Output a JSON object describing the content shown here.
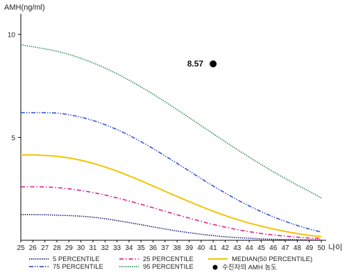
{
  "chart_data": {
    "type": "line",
    "ylabel": "AMH(ng/ml)",
    "xlabel": "나이",
    "x": [
      25,
      26,
      27,
      28,
      29,
      30,
      31,
      32,
      33,
      34,
      35,
      36,
      37,
      38,
      39,
      40,
      41,
      42,
      43,
      44,
      45,
      46,
      47,
      48,
      49,
      50
    ],
    "xlim": [
      25,
      50
    ],
    "ylim": [
      0,
      11
    ],
    "yticks": [
      5,
      10
    ],
    "grid": false,
    "legend_position": "bottom",
    "series": [
      {
        "name": "5 PERCENTILE",
        "color": "#1a1a6e",
        "style": "dotted",
        "values": [
          1.25,
          1.25,
          1.24,
          1.22,
          1.2,
          1.17,
          1.12,
          1.05,
          0.96,
          0.86,
          0.76,
          0.65,
          0.55,
          0.45,
          0.37,
          0.29,
          0.23,
          0.17,
          0.13,
          0.1,
          0.07,
          0.05,
          0.04,
          0.03,
          0.02,
          0.02
        ]
      },
      {
        "name": "25 PERCENTILE",
        "color": "#e0208a",
        "style": "dashdot",
        "values": [
          2.6,
          2.6,
          2.59,
          2.56,
          2.5,
          2.42,
          2.32,
          2.2,
          2.06,
          1.91,
          1.75,
          1.58,
          1.41,
          1.24,
          1.08,
          0.92,
          0.77,
          0.64,
          0.52,
          0.42,
          0.33,
          0.26,
          0.2,
          0.15,
          0.11,
          0.09
        ]
      },
      {
        "name": "MEDIAN(50 PERCENTILE)",
        "color": "#f2c400",
        "style": "solid",
        "values": [
          4.15,
          4.15,
          4.12,
          4.08,
          4.0,
          3.89,
          3.74,
          3.56,
          3.36,
          3.13,
          2.89,
          2.64,
          2.38,
          2.13,
          1.88,
          1.64,
          1.41,
          1.2,
          1.01,
          0.84,
          0.69,
          0.55,
          0.43,
          0.33,
          0.24,
          0.18
        ]
      },
      {
        "name": "75 PERCENTILE",
        "color": "#3355cc",
        "style": "dashdotdot",
        "values": [
          6.2,
          6.2,
          6.2,
          6.18,
          6.1,
          5.98,
          5.82,
          5.62,
          5.38,
          5.1,
          4.79,
          4.46,
          4.1,
          3.74,
          3.37,
          3.0,
          2.64,
          2.3,
          1.97,
          1.67,
          1.39,
          1.14,
          0.92,
          0.72,
          0.55,
          0.4
        ]
      },
      {
        "name": "95 PERCENTILE",
        "color": "#2e8b57",
        "style": "dotted",
        "values": [
          9.5,
          9.4,
          9.3,
          9.18,
          9.03,
          8.84,
          8.62,
          8.37,
          8.09,
          7.78,
          7.45,
          7.1,
          6.73,
          6.35,
          5.96,
          5.57,
          5.18,
          4.79,
          4.41,
          4.04,
          3.68,
          3.33,
          3.0,
          2.68,
          2.38,
          2.05
        ]
      }
    ],
    "point": {
      "name": "수진자의 AMH 농도",
      "x": 41,
      "y": 8.57,
      "label": "8.57",
      "color": "#000000"
    }
  }
}
